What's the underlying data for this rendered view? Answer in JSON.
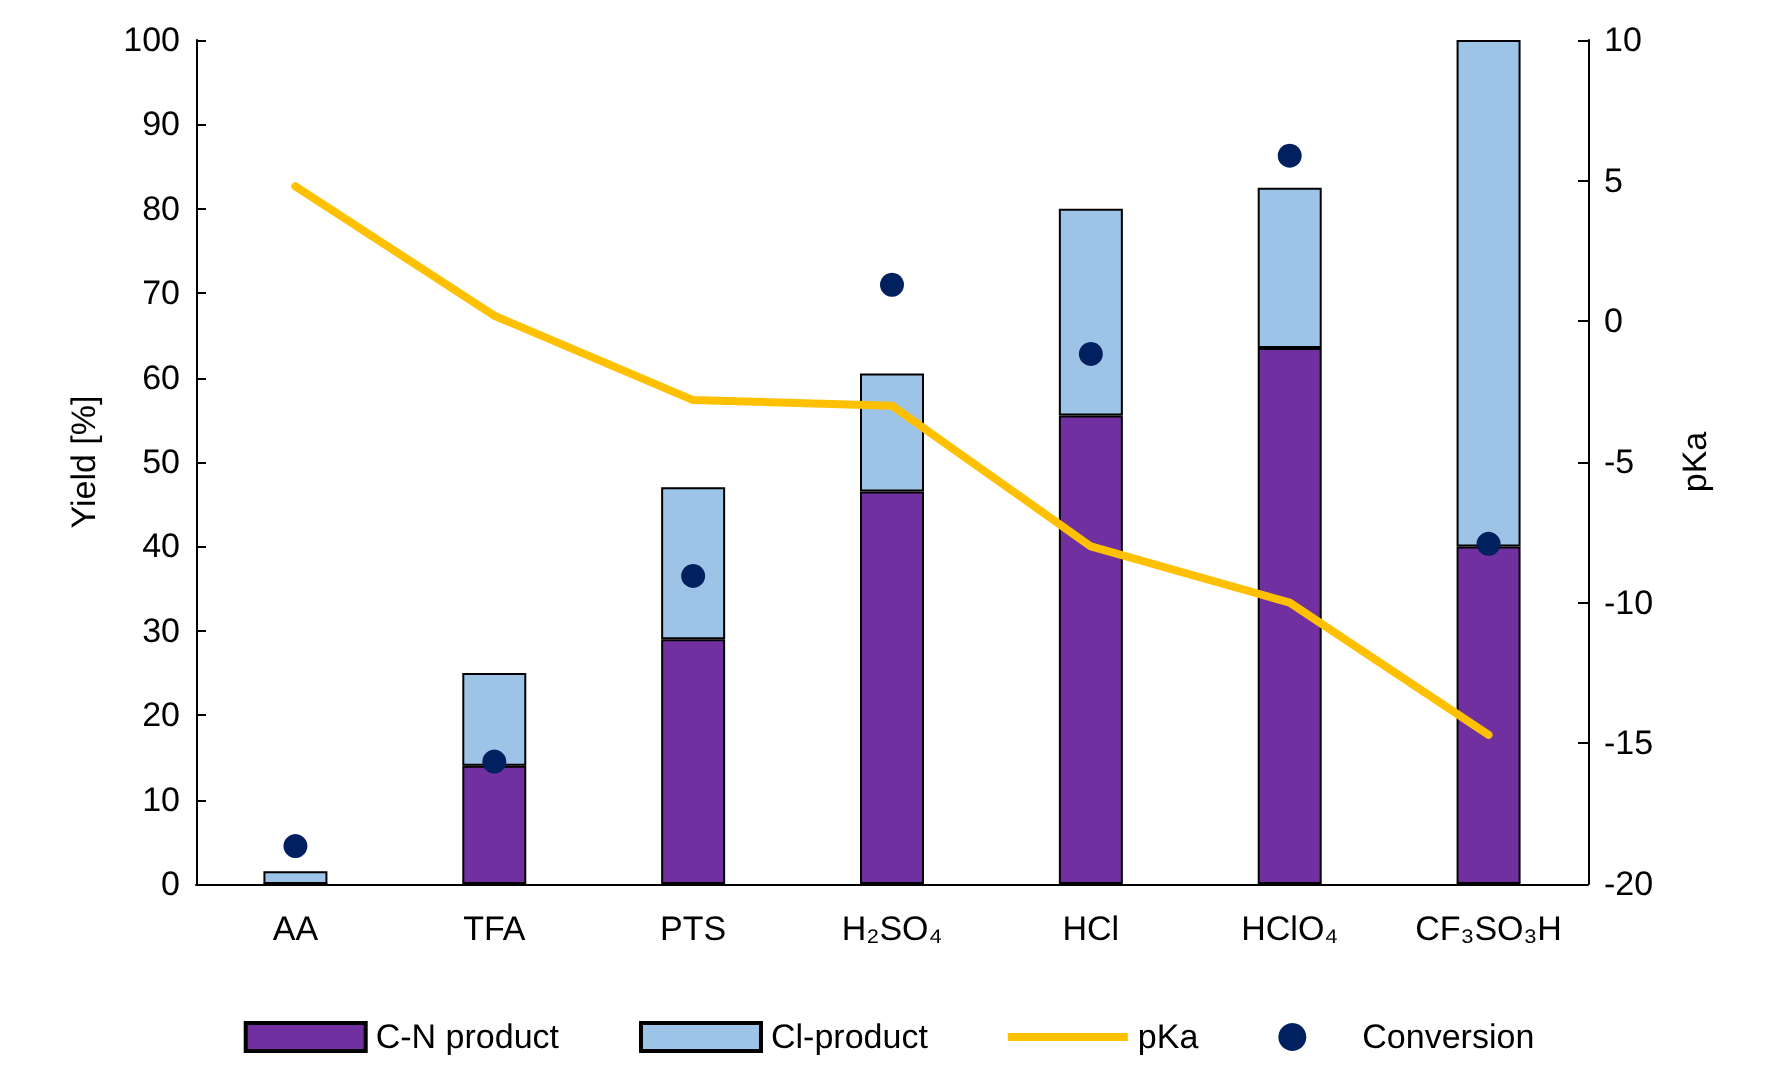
{
  "chart_data": {
    "type": "bar",
    "stacked": true,
    "ylabel": "Yield [%]",
    "y2label": "pKa",
    "categories": [
      "AA",
      "TFA",
      "PTS",
      "H₂SO₄",
      "HCl",
      "HClO₄",
      "CF₃SO₃H"
    ],
    "series": [
      {
        "name": "C-N product",
        "color": "#7030a0",
        "values": [
          0,
          14,
          29,
          46.5,
          55.5,
          63.5,
          40
        ]
      },
      {
        "name": "Cl-product",
        "color": "#9dc3e6",
        "values": [
          1.5,
          11,
          18,
          14,
          24.5,
          19,
          60
        ]
      },
      {
        "name": "pKa",
        "type": "line",
        "axis": "y2",
        "color": "#ffc000",
        "marker": "none",
        "values": [
          4.8,
          0.2,
          -2.8,
          -3,
          -8,
          -10,
          -14.7
        ]
      },
      {
        "name": "Conversion",
        "type": "scatter",
        "color": "#002060",
        "marker": "circle",
        "values": [
          4.5,
          14.5,
          36.5,
          71,
          62.8,
          86.3,
          40.3
        ]
      }
    ],
    "ylim": [
      0,
      100
    ],
    "yticks": [
      0,
      10,
      20,
      30,
      40,
      50,
      60,
      70,
      80,
      90,
      100
    ],
    "y2lim": [
      -20,
      10
    ],
    "y2ticks": [
      -20,
      -15,
      -10,
      -5,
      0,
      5,
      10
    ],
    "grid": false,
    "legend": "bottom"
  }
}
